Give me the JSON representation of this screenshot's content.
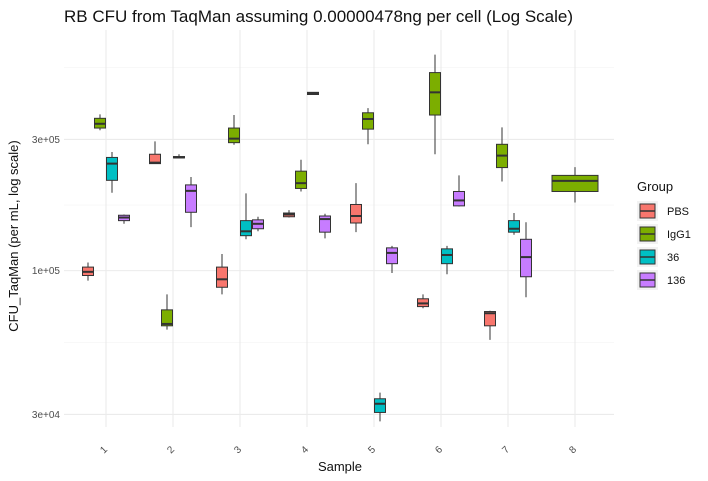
{
  "chart_data": {
    "type": "boxplot",
    "title": "RB CFU from TaqMan assuming 0.00000478ng per cell (Log Scale)",
    "xlabel": "Sample",
    "ylabel": "CFU_TaqMan (per mL, log scale)",
    "y_scale": "log10",
    "ylim": [
      27000,
      750000
    ],
    "y_ticks": [
      30000,
      100000,
      300000
    ],
    "y_tick_labels": [
      "3e+04",
      "1e+05",
      "3e+05"
    ],
    "grid": true,
    "categories": [
      "1",
      "2",
      "3",
      "4",
      "5",
      "6",
      "7",
      "8"
    ],
    "legend": {
      "title": "Group",
      "position": "right",
      "entries": [
        "PBS",
        "IgG1",
        "36",
        "136"
      ]
    },
    "series": [
      {
        "name": "PBS",
        "color": "#F8766D",
        "boxes": [
          {
            "x": "1",
            "min": 92000,
            "q1": 96000,
            "median": 99000,
            "q3": 103000,
            "max": 107000
          },
          {
            "x": "2",
            "min": 245000,
            "q1": 245000,
            "median": 247000,
            "q3": 265000,
            "max": 295000
          },
          {
            "x": "3",
            "min": 82000,
            "q1": 87000,
            "median": 93000,
            "q3": 103000,
            "max": 115000
          },
          {
            "x": "4",
            "min": 156000,
            "q1": 157000,
            "median": 160000,
            "q3": 162000,
            "max": 166000
          },
          {
            "x": "5",
            "min": 138000,
            "q1": 149000,
            "median": 158000,
            "q3": 174000,
            "max": 208000
          },
          {
            "x": "6",
            "min": 73000,
            "q1": 74000,
            "median": 76000,
            "q3": 79000,
            "max": 82000
          },
          {
            "x": "7",
            "min": 56000,
            "q1": 63000,
            "median": 70000,
            "q3": 71000,
            "max": 71500
          }
        ]
      },
      {
        "name": "IgG1",
        "color": "#7CAE00",
        "boxes": [
          {
            "x": "1",
            "min": 324000,
            "q1": 330000,
            "median": 342000,
            "q3": 358000,
            "max": 370000
          },
          {
            "x": "2",
            "min": 61000,
            "q1": 63000,
            "median": 64000,
            "q3": 72000,
            "max": 82000
          },
          {
            "x": "3",
            "min": 287000,
            "q1": 292000,
            "median": 302000,
            "q3": 330000,
            "max": 368000
          },
          {
            "x": "4",
            "min": 194000,
            "q1": 199000,
            "median": 208000,
            "q3": 230000,
            "max": 253000
          },
          {
            "x": "5",
            "min": 288000,
            "q1": 327000,
            "median": 356000,
            "q3": 375000,
            "max": 390000
          },
          {
            "x": "6",
            "min": 265000,
            "q1": 368000,
            "median": 445000,
            "q3": 525000,
            "max": 610000
          },
          {
            "x": "7",
            "min": 211000,
            "q1": 237000,
            "median": 262000,
            "q3": 288000,
            "max": 332000
          },
          {
            "x": "8",
            "min": 177000,
            "q1": 194000,
            "median": 212000,
            "q3": 222000,
            "max": 238000
          }
        ]
      },
      {
        "name": "36",
        "color": "#00BFC4",
        "boxes": [
          {
            "x": "1",
            "min": 192000,
            "q1": 213000,
            "median": 245000,
            "q3": 258000,
            "max": 270000
          },
          {
            "x": "2",
            "min": 257000,
            "q1": 257000,
            "median": 258000,
            "q3": 260000,
            "max": 265000
          },
          {
            "x": "3",
            "min": 130000,
            "q1": 134000,
            "median": 139000,
            "q3": 152000,
            "max": 191000
          },
          {
            "x": "5",
            "min": 28300,
            "q1": 30500,
            "median": 32800,
            "q3": 34200,
            "max": 36000
          },
          {
            "x": "6",
            "min": 97000,
            "q1": 106000,
            "median": 114000,
            "q3": 120000,
            "max": 123000
          },
          {
            "x": "7",
            "min": 135000,
            "q1": 138000,
            "median": 142000,
            "q3": 152000,
            "max": 162000
          }
        ]
      },
      {
        "name": "136",
        "color": "#C77CFF",
        "boxes": [
          {
            "x": "1",
            "min": 148000,
            "q1": 152000,
            "median": 156000,
            "q3": 159000,
            "max": 160000
          },
          {
            "x": "2",
            "min": 144000,
            "q1": 163000,
            "median": 195000,
            "q3": 205000,
            "max": 219000
          },
          {
            "x": "3",
            "min": 139000,
            "q1": 142000,
            "median": 148000,
            "q3": 153000,
            "max": 157000
          },
          {
            "x": "4",
            "min": 131000,
            "q1": 138000,
            "median": 154000,
            "q3": 158000,
            "max": 161000
          },
          {
            "x": "5",
            "min": 98000,
            "q1": 106000,
            "median": 116000,
            "q3": 121000,
            "max": 123000
          },
          {
            "x": "6",
            "min": 171000,
            "q1": 172000,
            "median": 180000,
            "q3": 194000,
            "max": 222000
          },
          {
            "x": "7",
            "min": 80000,
            "q1": 95000,
            "median": 112000,
            "q3": 130000,
            "max": 150000
          }
        ]
      }
    ],
    "special_boxes": [
      {
        "x": "4",
        "group_slot": "36",
        "color": "#333333",
        "min": 436000,
        "q1": 437000,
        "median": 441000,
        "q3": 445000,
        "max": 446000
      }
    ]
  }
}
